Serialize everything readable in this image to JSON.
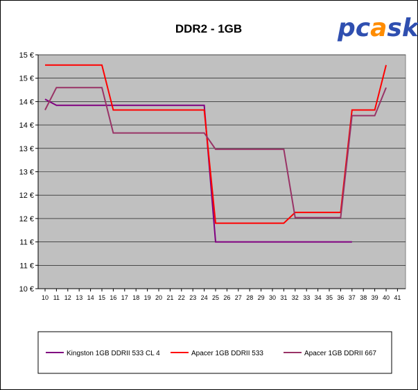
{
  "chart_data": {
    "type": "line",
    "title": "DDR2 - 1GB",
    "logo": "pcask",
    "xlabel": "",
    "ylabel": "",
    "x": [
      10,
      11,
      12,
      13,
      14,
      15,
      16,
      17,
      18,
      19,
      20,
      21,
      22,
      23,
      24,
      25,
      26,
      27,
      28,
      29,
      30,
      31,
      32,
      33,
      34,
      35,
      36,
      37,
      38,
      39,
      40,
      41
    ],
    "x_ticks": [
      "10",
      "11",
      "12",
      "13",
      "14",
      "15",
      "16",
      "17",
      "18",
      "19",
      "20",
      "21",
      "22",
      "23",
      "24",
      "25",
      "26",
      "27",
      "28",
      "29",
      "30",
      "31",
      "32",
      "33",
      "34",
      "35",
      "36",
      "37",
      "38",
      "39",
      "40",
      "41"
    ],
    "ylim": [
      10,
      15
    ],
    "y_ticks": [
      10,
      10.5,
      11,
      11.5,
      12,
      12.5,
      13,
      13.5,
      14,
      14.5,
      15
    ],
    "y_tick_labels": [
      "10 €",
      "11 €",
      "11 €",
      "12 €",
      "12 €",
      "13 €",
      "13 €",
      "14 €",
      "14 €",
      "15 €",
      "15 €"
    ],
    "grid": true,
    "legend_position": "bottom",
    "plot_background": "#c0c0c0",
    "series": [
      {
        "name": "Kingston 1GB DDRII 533 CL 4",
        "color": "#800080",
        "values": [
          14.05,
          13.92,
          13.92,
          13.92,
          13.92,
          13.92,
          13.92,
          13.92,
          13.92,
          13.92,
          13.92,
          13.92,
          13.92,
          13.92,
          13.92,
          11.0,
          11.0,
          11.0,
          11.0,
          11.0,
          11.0,
          11.0,
          11.0,
          11.0,
          11.0,
          11.0,
          11.0,
          11.0,
          null,
          null,
          null,
          null
        ]
      },
      {
        "name": "Apacer 1GB DDRII 533",
        "color": "#ff0000",
        "values": [
          14.78,
          14.78,
          14.78,
          14.78,
          14.78,
          14.78,
          13.82,
          13.82,
          13.82,
          13.82,
          13.82,
          13.82,
          13.82,
          13.82,
          13.82,
          11.4,
          11.4,
          11.4,
          11.4,
          11.4,
          11.4,
          11.4,
          11.63,
          11.63,
          11.63,
          11.63,
          11.63,
          13.82,
          13.82,
          13.82,
          14.78,
          null
        ]
      },
      {
        "name": "Apacer 1GB DDRII 667",
        "color": "#993366",
        "values": [
          13.82,
          14.3,
          14.3,
          14.3,
          14.3,
          14.3,
          13.33,
          13.33,
          13.33,
          13.33,
          13.33,
          13.33,
          13.33,
          13.33,
          13.33,
          12.98,
          12.98,
          12.98,
          12.98,
          12.98,
          12.98,
          12.98,
          11.52,
          11.52,
          11.52,
          11.52,
          11.52,
          13.7,
          13.7,
          13.7,
          14.3,
          null
        ]
      }
    ]
  }
}
